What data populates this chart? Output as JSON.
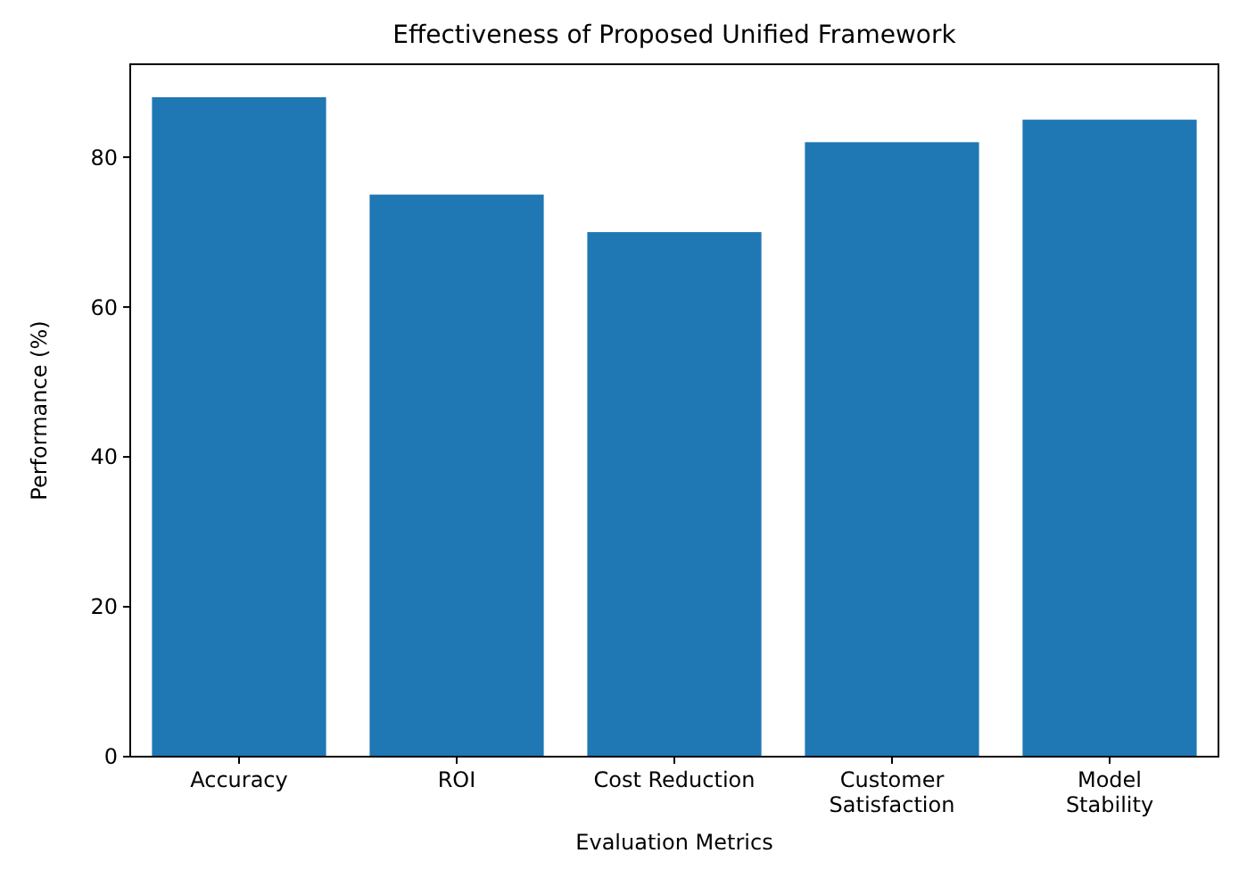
{
  "chart_data": {
    "type": "bar",
    "title": "Effectiveness of Proposed Unified Framework",
    "xlabel": "Evaluation Metrics",
    "ylabel": "Performance (%)",
    "categories": [
      "Accuracy",
      "ROI",
      "Cost Reduction",
      "Customer Satisfaction",
      "Model Stability"
    ],
    "values": [
      88,
      75,
      70,
      82,
      85
    ],
    "color": "#1f77b4",
    "ylim": [
      0,
      92.4
    ],
    "yticks": [
      0,
      20,
      40,
      60,
      80
    ],
    "grid": false
  }
}
